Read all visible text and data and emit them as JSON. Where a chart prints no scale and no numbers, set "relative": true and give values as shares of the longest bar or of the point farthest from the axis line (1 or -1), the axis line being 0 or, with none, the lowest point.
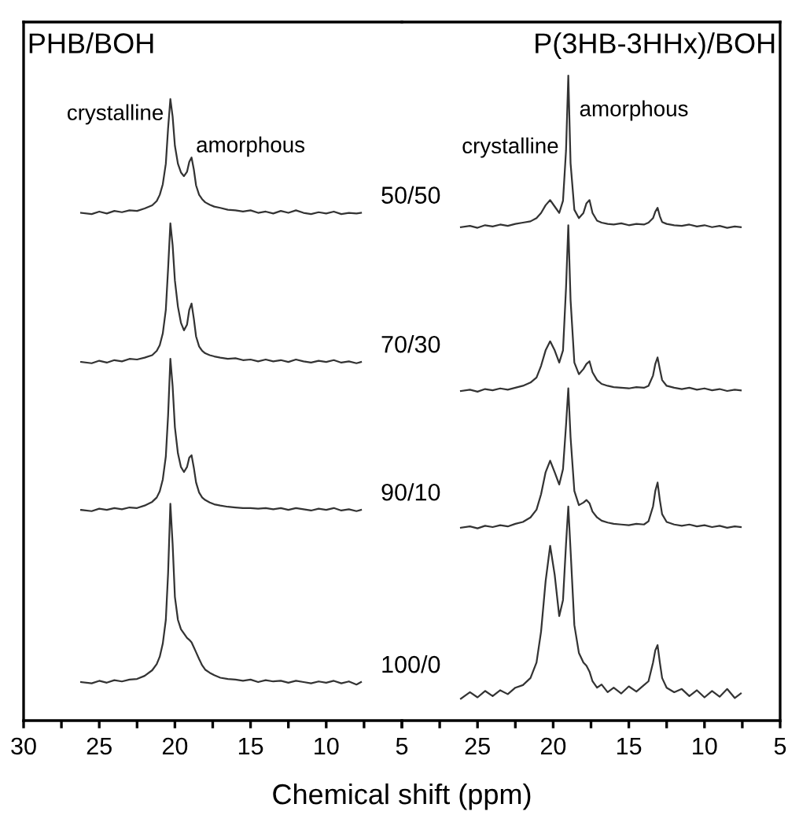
{
  "chart_data": [
    {
      "type": "line",
      "title": "PHB/BOH",
      "xlabel": "Chemical shift (ppm)",
      "relative": true,
      "xlim": [
        30,
        5
      ],
      "xticks": [
        30,
        {
          "value": 27.5,
          "label": null
        },
        25,
        {
          "value": 22.5,
          "label": null
        },
        20,
        {
          "value": 17.5,
          "label": null
        },
        15,
        {
          "value": 12.5,
          "label": null
        },
        10,
        {
          "value": 7.5,
          "label": null
        },
        5
      ],
      "x": [
        26.2,
        25.5,
        25,
        24.5,
        24,
        23.5,
        23,
        22.5,
        22,
        21.5,
        21.2,
        21,
        20.8,
        20.6,
        20.45,
        20.3,
        20.15,
        20,
        19.8,
        19.6,
        19.4,
        19.2,
        19.05,
        18.9,
        18.75,
        18.6,
        18.4,
        18.2,
        18,
        17.7,
        17.4,
        17,
        16.5,
        16,
        15.5,
        15,
        14.5,
        14,
        13.5,
        13,
        12.5,
        12,
        11.5,
        11,
        10.5,
        10,
        9.5,
        9,
        8.5,
        8,
        7.7
      ],
      "series": [
        {
          "name": "50/50",
          "color": "#333333",
          "values": [
            0.817,
            0.815,
            0.819,
            0.816,
            0.82,
            0.818,
            0.821,
            0.82,
            0.824,
            0.829,
            0.836,
            0.846,
            0.863,
            0.896,
            0.953,
            1.0,
            0.972,
            0.925,
            0.896,
            0.882,
            0.876,
            0.883,
            0.899,
            0.906,
            0.887,
            0.861,
            0.846,
            0.839,
            0.834,
            0.83,
            0.827,
            0.825,
            0.822,
            0.821,
            0.819,
            0.821,
            0.817,
            0.819,
            0.816,
            0.82,
            0.817,
            0.821,
            0.817,
            0.815,
            0.818,
            0.816,
            0.819,
            0.815,
            0.817,
            0.816,
            0.817
          ]
        },
        {
          "name": "70/30",
          "color": "#333333",
          "values": [
            0.577,
            0.575,
            0.579,
            0.576,
            0.58,
            0.578,
            0.582,
            0.581,
            0.584,
            0.588,
            0.595,
            0.604,
            0.623,
            0.661,
            0.727,
            0.8,
            0.765,
            0.708,
            0.666,
            0.64,
            0.628,
            0.637,
            0.661,
            0.671,
            0.647,
            0.618,
            0.602,
            0.595,
            0.591,
            0.588,
            0.586,
            0.584,
            0.582,
            0.583,
            0.58,
            0.581,
            0.578,
            0.581,
            0.578,
            0.58,
            0.577,
            0.581,
            0.578,
            0.576,
            0.579,
            0.577,
            0.58,
            0.576,
            0.578,
            0.575,
            0.577
          ]
        },
        {
          "name": "90/10",
          "color": "#333333",
          "values": [
            0.339,
            0.337,
            0.341,
            0.339,
            0.342,
            0.34,
            0.343,
            0.342,
            0.346,
            0.352,
            0.359,
            0.369,
            0.388,
            0.425,
            0.491,
            0.582,
            0.538,
            0.472,
            0.43,
            0.408,
            0.4,
            0.408,
            0.423,
            0.427,
            0.407,
            0.383,
            0.367,
            0.359,
            0.355,
            0.351,
            0.348,
            0.346,
            0.344,
            0.343,
            0.342,
            0.342,
            0.341,
            0.342,
            0.34,
            0.342,
            0.339,
            0.342,
            0.34,
            0.338,
            0.341,
            0.339,
            0.342,
            0.338,
            0.34,
            0.337,
            0.339
          ]
        },
        {
          "name": "100/0",
          "color": "#333333",
          "values": [
            0.062,
            0.06,
            0.064,
            0.061,
            0.065,
            0.063,
            0.066,
            0.067,
            0.072,
            0.081,
            0.091,
            0.103,
            0.124,
            0.162,
            0.237,
            0.349,
            0.284,
            0.199,
            0.162,
            0.147,
            0.14,
            0.133,
            0.13,
            0.126,
            0.118,
            0.11,
            0.099,
            0.089,
            0.082,
            0.077,
            0.073,
            0.069,
            0.067,
            0.066,
            0.064,
            0.066,
            0.062,
            0.065,
            0.063,
            0.064,
            0.061,
            0.064,
            0.062,
            0.06,
            0.063,
            0.061,
            0.064,
            0.06,
            0.063,
            0.058,
            0.062
          ]
        }
      ],
      "annotations": [
        {
          "text": "crystalline",
          "x": 20.3,
          "y": 1.0
        },
        {
          "text": "amorphous",
          "x": 18.9,
          "y": 0.906
        }
      ]
    },
    {
      "type": "line",
      "title": "P(3HB-3HHx)/BOH",
      "relative": true,
      "xlim": [
        30,
        5
      ],
      "xticks": [
        {
          "value": 30,
          "label": null
        },
        {
          "value": 27.5,
          "label": null
        },
        25,
        {
          "value": 22.5,
          "label": null
        },
        20,
        {
          "value": 17.5,
          "label": null
        },
        15,
        {
          "value": 12.5,
          "label": null
        },
        10,
        {
          "value": 7.5,
          "label": null
        },
        5
      ],
      "x": [
        26.1,
        25.5,
        25,
        24.5,
        24,
        23.5,
        23,
        22.5,
        22,
        21.5,
        21.1,
        20.8,
        20.5,
        20.2,
        19.9,
        19.6,
        19.35,
        19.15,
        19.0,
        18.85,
        18.6,
        18.3,
        18.0,
        17.8,
        17.6,
        17.4,
        17.1,
        16.8,
        16.4,
        16,
        15.5,
        15,
        14.5,
        14,
        13.7,
        13.4,
        13.25,
        13.1,
        12.95,
        12.8,
        12.5,
        12,
        11.5,
        11,
        10.5,
        10,
        9.5,
        9,
        8.5,
        8,
        7.6
      ],
      "series": [
        {
          "color": "#333333",
          "values": [
            0.765,
            0.767,
            0.764,
            0.768,
            0.766,
            0.769,
            0.767,
            0.77,
            0.772,
            0.774,
            0.779,
            0.787,
            0.799,
            0.807,
            0.797,
            0.787,
            0.806,
            0.884,
            1.0,
            0.864,
            0.792,
            0.779,
            0.787,
            0.802,
            0.807,
            0.787,
            0.775,
            0.772,
            0.77,
            0.769,
            0.771,
            0.768,
            0.77,
            0.769,
            0.772,
            0.779,
            0.789,
            0.795,
            0.782,
            0.773,
            0.77,
            0.768,
            0.767,
            0.769,
            0.766,
            0.768,
            0.765,
            0.767,
            0.764,
            0.766,
            0.765
          ]
        },
        {
          "color": "#333333",
          "values": [
            0.511,
            0.513,
            0.51,
            0.514,
            0.512,
            0.515,
            0.513,
            0.516,
            0.519,
            0.524,
            0.532,
            0.55,
            0.574,
            0.588,
            0.574,
            0.555,
            0.574,
            0.671,
            0.768,
            0.652,
            0.555,
            0.537,
            0.545,
            0.553,
            0.557,
            0.54,
            0.528,
            0.522,
            0.519,
            0.517,
            0.516,
            0.515,
            0.517,
            0.516,
            0.519,
            0.535,
            0.553,
            0.563,
            0.545,
            0.528,
            0.519,
            0.516,
            0.514,
            0.516,
            0.513,
            0.515,
            0.512,
            0.514,
            0.511,
            0.513,
            0.512
          ]
        },
        {
          "color": "#333333",
          "values": [
            0.299,
            0.301,
            0.298,
            0.302,
            0.3,
            0.303,
            0.301,
            0.305,
            0.308,
            0.315,
            0.327,
            0.351,
            0.385,
            0.403,
            0.385,
            0.366,
            0.39,
            0.458,
            0.515,
            0.439,
            0.356,
            0.334,
            0.338,
            0.342,
            0.337,
            0.324,
            0.315,
            0.31,
            0.307,
            0.305,
            0.304,
            0.303,
            0.305,
            0.304,
            0.309,
            0.332,
            0.356,
            0.369,
            0.342,
            0.32,
            0.308,
            0.304,
            0.302,
            0.304,
            0.301,
            0.303,
            0.3,
            0.302,
            0.299,
            0.301,
            0.3
          ]
        },
        {
          "color": "#333333",
          "values": [
            0.034,
            0.044,
            0.036,
            0.046,
            0.038,
            0.047,
            0.041,
            0.051,
            0.055,
            0.066,
            0.09,
            0.138,
            0.216,
            0.271,
            0.226,
            0.162,
            0.187,
            0.274,
            0.332,
            0.264,
            0.148,
            0.105,
            0.09,
            0.085,
            0.076,
            0.061,
            0.051,
            0.056,
            0.044,
            0.051,
            0.042,
            0.053,
            0.045,
            0.055,
            0.061,
            0.09,
            0.109,
            0.117,
            0.09,
            0.066,
            0.051,
            0.044,
            0.049,
            0.038,
            0.047,
            0.036,
            0.046,
            0.037,
            0.049,
            0.035,
            0.042
          ]
        }
      ],
      "annotations": [
        {
          "text": "crystalline",
          "x": 20.2,
          "y": 0.807
        },
        {
          "text": "amorphous",
          "x": 19.0,
          "y": 1.0
        }
      ]
    }
  ]
}
